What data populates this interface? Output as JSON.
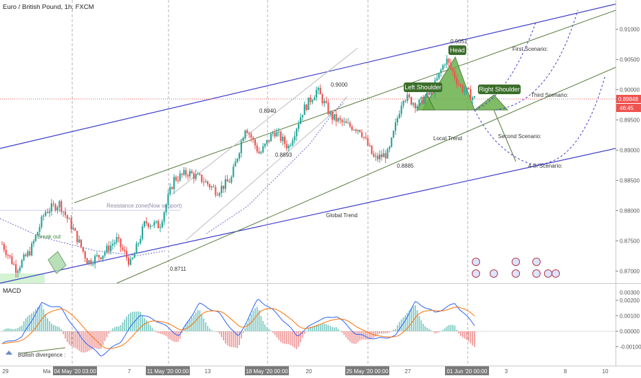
{
  "symbol_title": "Euro / British Pound, 1h, FXCM",
  "chart_data": [
    {
      "type": "candlestick",
      "title": "Euro / British Pound, 1h, FXCM",
      "ylim": [
        0.8665,
        0.9155
      ],
      "y_ticks": [
        "0.91000",
        "0.90500",
        "0.90000",
        "0.89500",
        "0.89000",
        "0.88500",
        "0.88000",
        "0.87500",
        "0.87000"
      ],
      "x_ticks": [
        "29",
        "Ma",
        "04 May '20  03:00",
        "7",
        "11 May '20  00:00",
        "13",
        "18 May '20  00:00",
        "20",
        "25 May '20  00:00",
        "27",
        "01 Jun '20  00:00",
        "3",
        "8",
        "10"
      ],
      "price_path": [
        {
          "x": "Apr 29",
          "close": 0.8745
        },
        {
          "x": "Apr 30",
          "close": 0.8703
        },
        {
          "x": "May 1",
          "close": 0.8735
        },
        {
          "x": "May 3",
          "close": 0.8798
        },
        {
          "x": "May 4",
          "close": 0.8812
        },
        {
          "x": "May 5",
          "close": 0.8767
        },
        {
          "x": "May 6",
          "close": 0.8715
        },
        {
          "x": "May 7",
          "close": 0.8728
        },
        {
          "x": "May 8",
          "close": 0.8752
        },
        {
          "x": "May 10",
          "close": 0.8711
        },
        {
          "x": "May 11",
          "close": 0.8781
        },
        {
          "x": "May 12",
          "close": 0.8775
        },
        {
          "x": "May 13",
          "close": 0.8852
        },
        {
          "x": "May 14",
          "close": 0.8863
        },
        {
          "x": "May 15",
          "close": 0.8851
        },
        {
          "x": "May 16",
          "close": 0.8832
        },
        {
          "x": "May 18",
          "close": 0.8852
        },
        {
          "x": "May 19",
          "close": 0.894
        },
        {
          "x": "May 19b",
          "close": 0.8893
        },
        {
          "x": "May 20",
          "close": 0.8932
        },
        {
          "x": "May 21",
          "close": 0.8905
        },
        {
          "x": "May 22",
          "close": 0.8965
        },
        {
          "x": "May 23",
          "close": 0.9
        },
        {
          "x": "May 24",
          "close": 0.8955
        },
        {
          "x": "May 25",
          "close": 0.8942
        },
        {
          "x": "May 26",
          "close": 0.8935
        },
        {
          "x": "May 27",
          "close": 0.8885
        },
        {
          "x": "May 28",
          "close": 0.8895
        },
        {
          "x": "May 29",
          "close": 0.899
        },
        {
          "x": "May 30",
          "close": 0.8975
        },
        {
          "x": "May 31",
          "close": 0.8995
        },
        {
          "x": "Jun 1",
          "close": 0.9051
        },
        {
          "x": "Jun 1b",
          "close": 0.9005
        },
        {
          "x": "Jun 2",
          "close": 0.8985
        }
      ],
      "last_price": "0.89848",
      "countdown": "46:45",
      "price_labels": [
        "0.9051",
        "0.9000",
        "0.8940",
        "0.8893",
        "0.8885",
        "0.8711"
      ],
      "annotations": [
        "Head",
        "Left Shoulder",
        "Right Shoulder",
        "First Scenario:",
        "Third Scenario:",
        "Second Scenario:",
        "4-th Scenario:",
        "Local Trend",
        "Global Trend",
        "Resistance zone(Now support)",
        "Break out"
      ]
    },
    {
      "type": "macd",
      "title": "MACD",
      "ylim": [
        -0.00125,
        0.003
      ],
      "y_ticks": [
        "0.00300",
        "0.00200",
        "0.00100",
        "0.00000",
        "-0.00100"
      ],
      "macd_path": [
        -0.0008,
        -0.0004,
        0.0018,
        0.0015,
        -0.0004,
        -0.0016,
        -0.0007,
        0.0011,
        0.0006,
        -0.0003,
        0.0018,
        0.0012,
        -0.0004,
        0.0021,
        0.0011,
        -0.0003,
        0.0007,
        0.001,
        -0.0002,
        -0.0005,
        -0.0003,
        0.0019,
        0.0012,
        0.0018,
        0.0004
      ],
      "annotations": [
        "Bullish divergence :"
      ]
    }
  ]
}
